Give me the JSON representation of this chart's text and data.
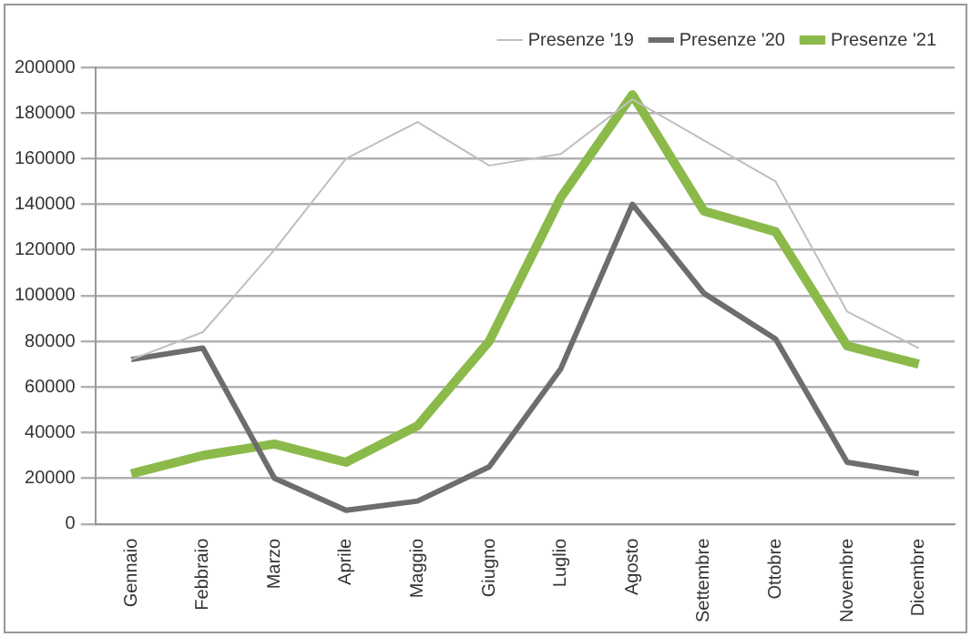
{
  "chart_data": {
    "type": "line",
    "categories": [
      "Gennaio",
      "Febbraio",
      "Marzo",
      "Aprile",
      "Maggio",
      "Giugno",
      "Luglio",
      "Agosto",
      "Settembre",
      "Ottobre",
      "Novembre",
      "Dicembre"
    ],
    "series": [
      {
        "name": "Presenze '19",
        "color": "#bfbfbf",
        "values": [
          72000,
          84000,
          120000,
          160000,
          176000,
          157000,
          162000,
          186000,
          168000,
          150000,
          93000,
          77000
        ]
      },
      {
        "name": "Presenze '20",
        "color": "#6d6d6d",
        "values": [
          72000,
          77000,
          20000,
          6000,
          10000,
          25000,
          68000,
          140000,
          101000,
          81000,
          27000,
          22000
        ]
      },
      {
        "name": "Presenze '21",
        "color": "#8cba4a",
        "values": [
          22000,
          30000,
          35000,
          27000,
          43000,
          80000,
          143000,
          188000,
          137000,
          128000,
          78000,
          70000
        ]
      }
    ],
    "ylim": [
      0,
      200000
    ],
    "yticks": [
      0,
      20000,
      40000,
      60000,
      80000,
      100000,
      120000,
      140000,
      160000,
      180000,
      200000
    ],
    "grid": "y",
    "legend": "top right",
    "marker": "none",
    "line_style": "solid"
  }
}
